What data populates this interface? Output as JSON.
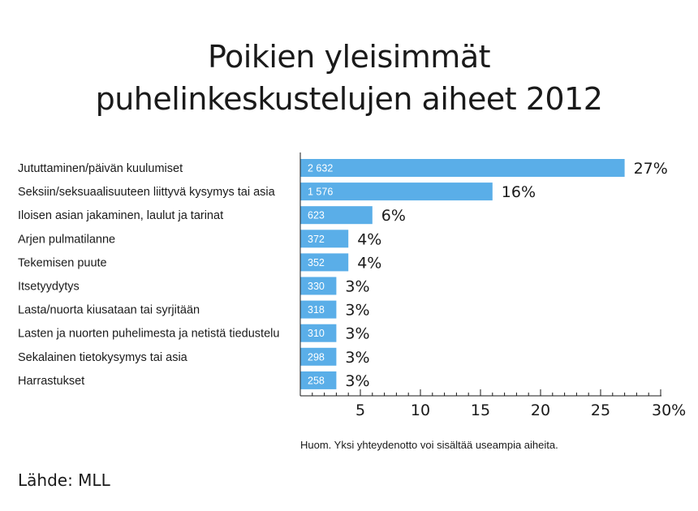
{
  "title_line1": "Poikien yleisimmät",
  "title_line2": "puhelinkeskustelujen aiheet 2012",
  "note": "Huom. Yksi yhteydenotto voi sisältää useampia aiheita.",
  "source": "Lähde: MLL",
  "colors": {
    "bar": "#5aaee8",
    "axis": "#1a1a1a",
    "bar_label": "#ffffff"
  },
  "chart_data": {
    "type": "bar",
    "orientation": "horizontal",
    "categories": [
      "Jututtaminen/päivän kuulumiset",
      "Seksiin/seksuaalisuuteen liittyvä kysymys tai asia",
      "Iloisen asian jakaminen, laulut ja tarinat",
      "Arjen pulmatilanne",
      "Tekemisen puute",
      "Itsetyydytys",
      "Lasta/nuorta kiusataan tai syrjitään",
      "Lasten ja nuorten puhelimesta ja netistä tiedustelu",
      "Sekalainen tietokysymys tai asia",
      "Harrastukset"
    ],
    "counts": [
      "2 632",
      "1 576",
      "623",
      "372",
      "352",
      "330",
      "318",
      "310",
      "298",
      "258"
    ],
    "values": [
      27,
      16,
      6,
      4,
      4,
      3,
      3,
      3,
      3,
      3
    ],
    "value_labels": [
      "27%",
      "16%",
      "6%",
      "4%",
      "4%",
      "3%",
      "3%",
      "3%",
      "3%",
      "3%"
    ],
    "xlim": [
      0,
      30
    ],
    "xticks": [
      5,
      10,
      15,
      20,
      25,
      30
    ],
    "xtick_labels": [
      "5",
      "10",
      "15",
      "20",
      "25",
      "30%"
    ],
    "grid": false
  }
}
